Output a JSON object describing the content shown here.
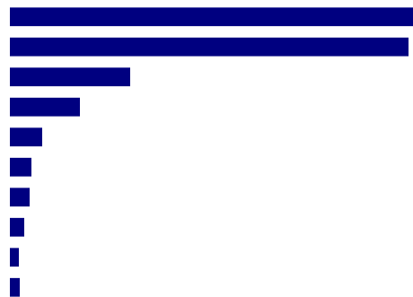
{
  "chart_data": {
    "type": "bar",
    "orientation": "horizontal",
    "categories": [
      null,
      null,
      null,
      null,
      null,
      null,
      null,
      null,
      null,
      null
    ],
    "values": [
      449,
      444,
      134,
      78,
      36,
      24,
      22,
      16,
      10,
      11
    ],
    "color": "#000080",
    "xlim": [
      0,
      449
    ]
  }
}
